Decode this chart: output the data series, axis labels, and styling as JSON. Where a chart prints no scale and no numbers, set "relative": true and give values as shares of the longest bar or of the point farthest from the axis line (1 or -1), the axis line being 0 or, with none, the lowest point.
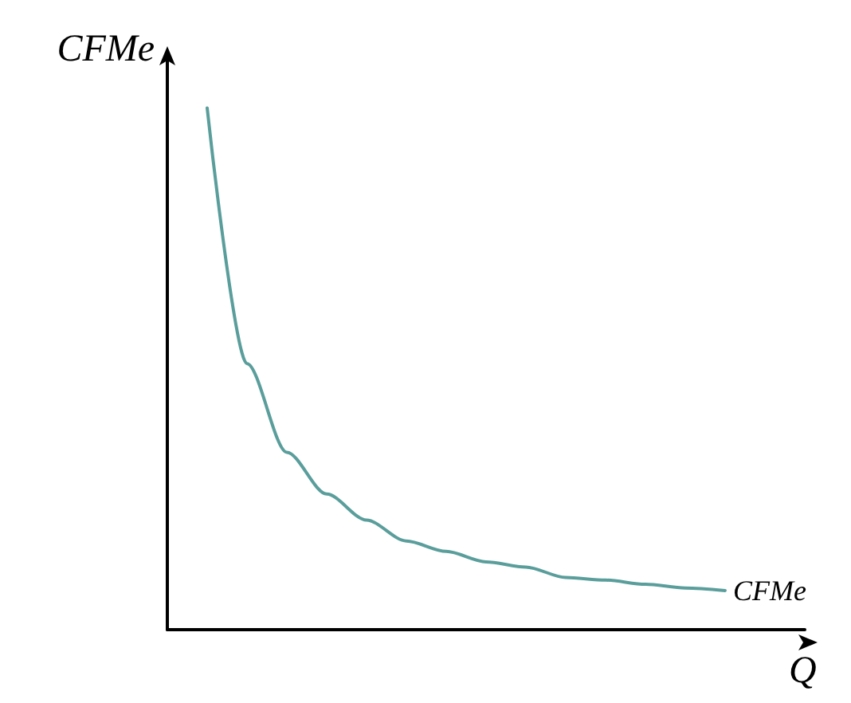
{
  "chart_data": {
    "type": "line",
    "relative": true,
    "xlabel": "Q",
    "ylabel": "CFMe",
    "categories": [
      null,
      null,
      null,
      null,
      null,
      null,
      null,
      null,
      null,
      null,
      null,
      null,
      null,
      null,
      null,
      null,
      null
    ],
    "series": [
      {
        "name": "CFMe",
        "color": "#5a9e9c",
        "values": [
          null,
          1,
          0.51,
          0.34,
          0.26,
          0.21,
          0.17,
          0.15,
          0.13,
          0.12,
          0.1,
          0.095,
          0.087,
          0.08,
          0.075,
          null,
          null
        ]
      }
    ],
    "grid": false,
    "legend": false,
    "marker": "none",
    "line_style": "solid"
  }
}
